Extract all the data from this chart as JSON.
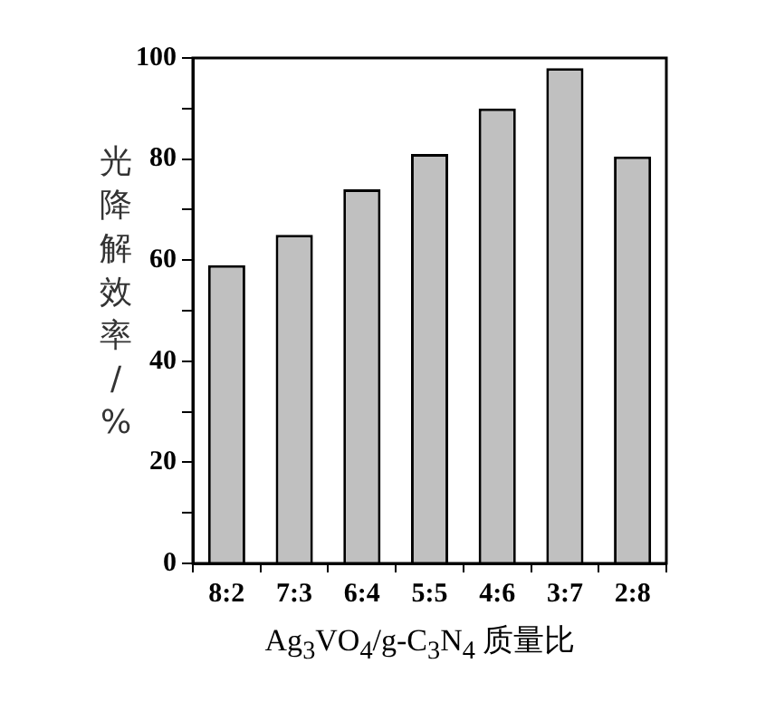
{
  "chart_data": {
    "type": "bar",
    "xlabel": "Ag$_{3}$VO$_{4}$/g-C$_{3}$N$_{4}$ 质量比",
    "ylabel": "光降解效率/%",
    "categories": [
      "8:2",
      "7:3",
      "6:4",
      "5:5",
      "4:6",
      "3:7",
      "2:8"
    ],
    "values": [
      59,
      65,
      74,
      81,
      90,
      98,
      80.5
    ],
    "color": "#c0c0c0",
    "ylim": [
      0,
      100
    ],
    "yticks": [
      0,
      {
        "value": 10,
        "label": null
      },
      20,
      {
        "value": 30,
        "label": null
      },
      40,
      {
        "value": 50,
        "label": null
      },
      60,
      {
        "value": 70,
        "label": null
      },
      80,
      {
        "value": 90,
        "label": null
      },
      100
    ],
    "grid": false,
    "legend": false
  }
}
